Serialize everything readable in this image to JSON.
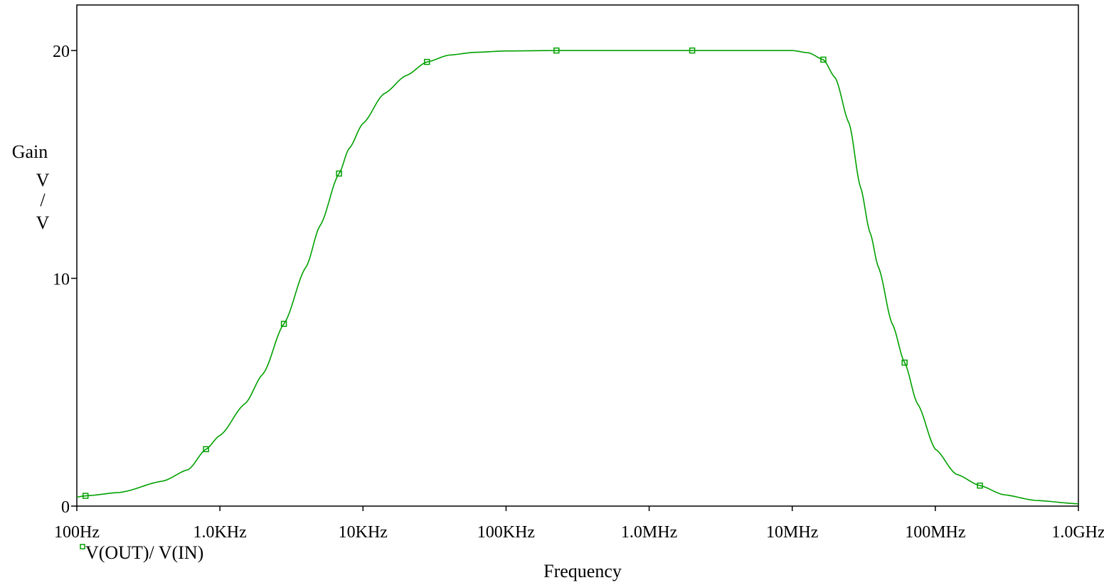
{
  "chart_data": {
    "type": "line",
    "xscale": "log",
    "xlim": [
      100,
      1000000000
    ],
    "ylim": [
      0,
      22
    ],
    "xlabel": "Frequency",
    "ylabel": [
      "Gain",
      "V",
      "/",
      "V"
    ],
    "x_ticks": [
      {
        "value": 100,
        "label": "100Hz"
      },
      {
        "value": 1000,
        "label": "1.0KHz"
      },
      {
        "value": 10000,
        "label": "10KHz"
      },
      {
        "value": 100000,
        "label": "100KHz"
      },
      {
        "value": 1000000,
        "label": "1.0MHz"
      },
      {
        "value": 10000000,
        "label": "10MHz"
      },
      {
        "value": 100000000,
        "label": "100MHz"
      },
      {
        "value": 1000000000,
        "label": "1.0GHz"
      }
    ],
    "y_ticks": [
      {
        "value": 0,
        "label": "0"
      },
      {
        "value": 10,
        "label": "10"
      },
      {
        "value": 20,
        "label": "20"
      }
    ],
    "grid": false,
    "legend_position": "bottom-left",
    "series": [
      {
        "name": "V(OUT)/ V(IN)",
        "color": "#00a000",
        "points": [
          [
            100,
            0.4
          ],
          [
            115,
            0.45
          ],
          [
            200,
            0.6
          ],
          [
            400,
            1.1
          ],
          [
            600,
            1.6
          ],
          [
            800,
            2.5
          ],
          [
            1000,
            3.1
          ],
          [
            1500,
            4.5
          ],
          [
            2000,
            5.8
          ],
          [
            2800,
            8.0
          ],
          [
            4000,
            10.5
          ],
          [
            5000,
            12.3
          ],
          [
            6800,
            14.6
          ],
          [
            8000,
            15.7
          ],
          [
            10000,
            16.8
          ],
          [
            14000,
            18.1
          ],
          [
            20000,
            18.9
          ],
          [
            28000,
            19.5
          ],
          [
            40000,
            19.8
          ],
          [
            60000,
            19.92
          ],
          [
            100000,
            19.98
          ],
          [
            225000,
            20.0
          ],
          [
            1000000,
            20.0
          ],
          [
            2000000,
            20.0
          ],
          [
            5000000,
            20.0
          ],
          [
            10000000,
            20.0
          ],
          [
            13000000,
            19.9
          ],
          [
            16500000,
            19.6
          ],
          [
            20000000,
            18.8
          ],
          [
            25000000,
            16.8
          ],
          [
            30000000,
            14.0
          ],
          [
            35000000,
            12.0
          ],
          [
            40000000,
            10.5
          ],
          [
            50000000,
            8.0
          ],
          [
            61000000,
            6.3
          ],
          [
            75000000,
            4.5
          ],
          [
            100000000,
            2.5
          ],
          [
            140000000,
            1.4
          ],
          [
            205000000,
            0.9
          ],
          [
            300000000,
            0.5
          ],
          [
            500000000,
            0.25
          ],
          [
            1000000000,
            0.1
          ]
        ],
        "markers": [
          [
            115,
            0.45
          ],
          [
            800,
            2.5
          ],
          [
            2800,
            8.0
          ],
          [
            6800,
            14.6
          ],
          [
            28000,
            19.5
          ],
          [
            225000,
            20.0
          ],
          [
            2000000,
            20.0
          ],
          [
            16500000,
            19.6
          ],
          [
            61000000,
            6.3
          ],
          [
            205000000,
            0.9
          ]
        ]
      }
    ]
  }
}
